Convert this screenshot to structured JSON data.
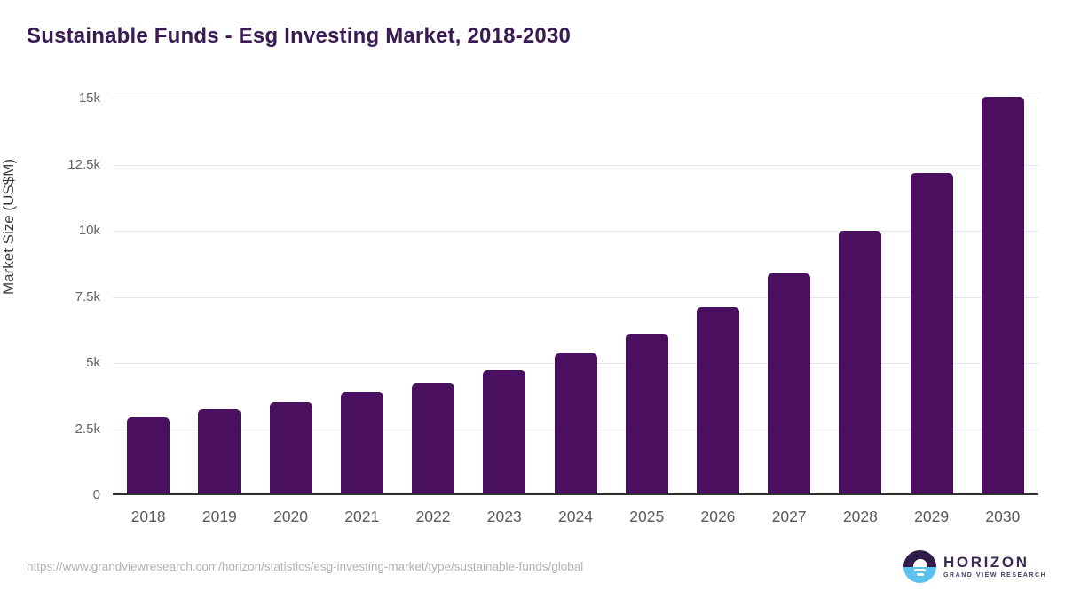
{
  "chart_data": {
    "type": "bar",
    "title": "Sustainable Funds - Esg Investing Market, 2018-2030",
    "xlabel": "",
    "ylabel": "Market Size (US$M)",
    "categories": [
      "2018",
      "2019",
      "2020",
      "2021",
      "2022",
      "2023",
      "2024",
      "2025",
      "2026",
      "2027",
      "2028",
      "2029",
      "2030"
    ],
    "values": [
      2870,
      3190,
      3460,
      3810,
      4170,
      4680,
      5290,
      6040,
      7040,
      8310,
      9950,
      12130,
      15000
    ],
    "ylim": [
      0,
      15000
    ],
    "yticks": [
      0,
      2500,
      5000,
      7500,
      10000,
      12500,
      15000
    ],
    "ytick_labels": [
      "0",
      "2.5k",
      "5k",
      "7.5k",
      "10k",
      "12.5k",
      "15k"
    ],
    "grid": true,
    "legend": "none",
    "bar_color": "#4a105f"
  },
  "footer": {
    "source_url": "https://www.grandviewresearch.com/horizon/statistics/esg-investing-market/type/sustainable-funds/global",
    "logo": {
      "brand": "HORIZON",
      "tagline": "GRAND VIEW RESEARCH",
      "icon": "horizon-sunrise-icon",
      "icon_top_color": "#2e1b47",
      "icon_bottom_color": "#5bc2f0"
    }
  },
  "colors": {
    "title": "#3a1a52",
    "bar": "#4a105f",
    "gridline": "#e6e6e6",
    "axis_line": "#2f2f2f",
    "tick_label": "#58595b",
    "source_url": "#b2b2b2",
    "logo_text": "#3b2a56"
  }
}
